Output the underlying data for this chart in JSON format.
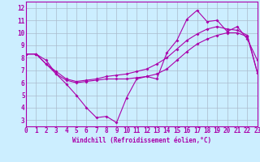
{
  "xlabel": "Windchill (Refroidissement éolien,°C)",
  "bg_color": "#cceeff",
  "line_color": "#aa00aa",
  "grid_color": "#aabbcc",
  "xlim": [
    0,
    23
  ],
  "ylim": [
    2.5,
    12.5
  ],
  "yticks": [
    3,
    4,
    5,
    6,
    7,
    8,
    9,
    10,
    11,
    12
  ],
  "xticks": [
    0,
    1,
    2,
    3,
    4,
    5,
    6,
    7,
    8,
    9,
    10,
    11,
    12,
    13,
    14,
    15,
    16,
    17,
    18,
    19,
    20,
    21,
    22,
    23
  ],
  "s1_x": [
    0,
    1,
    2,
    3,
    4,
    5,
    6,
    7,
    8,
    9,
    10,
    11,
    12,
    13,
    14,
    15,
    16,
    17,
    18,
    19,
    20,
    21,
    22,
    23
  ],
  "s1_y": [
    8.3,
    8.3,
    7.8,
    6.7,
    5.9,
    5.0,
    4.0,
    3.2,
    3.3,
    2.8,
    4.8,
    6.3,
    6.5,
    6.3,
    8.4,
    9.4,
    11.1,
    11.8,
    10.9,
    11.0,
    10.1,
    10.5,
    9.5,
    7.8
  ],
  "s2_x": [
    0,
    1,
    2,
    3,
    4,
    5,
    6,
    7,
    8,
    9,
    10,
    11,
    12,
    13,
    14,
    15,
    16,
    17,
    18,
    19,
    20,
    21,
    22,
    23
  ],
  "s2_y": [
    8.3,
    8.3,
    7.5,
    6.7,
    6.2,
    6.0,
    6.1,
    6.2,
    6.3,
    6.3,
    6.3,
    6.4,
    6.5,
    6.7,
    7.1,
    7.8,
    8.5,
    9.1,
    9.5,
    9.8,
    10.0,
    10.0,
    9.7,
    6.8
  ],
  "s3_x": [
    0,
    1,
    2,
    3,
    4,
    5,
    6,
    7,
    8,
    9,
    10,
    11,
    12,
    13,
    14,
    15,
    16,
    17,
    18,
    19,
    20,
    21,
    22,
    23
  ],
  "s3_y": [
    8.3,
    8.3,
    7.5,
    6.9,
    6.3,
    6.1,
    6.2,
    6.3,
    6.5,
    6.6,
    6.7,
    6.9,
    7.1,
    7.5,
    8.0,
    8.7,
    9.4,
    9.9,
    10.3,
    10.5,
    10.3,
    10.2,
    9.8,
    6.8
  ],
  "tick_fontsize": 5.5,
  "xlabel_fontsize": 5.5,
  "marker_size": 2.0,
  "line_width": 0.8
}
